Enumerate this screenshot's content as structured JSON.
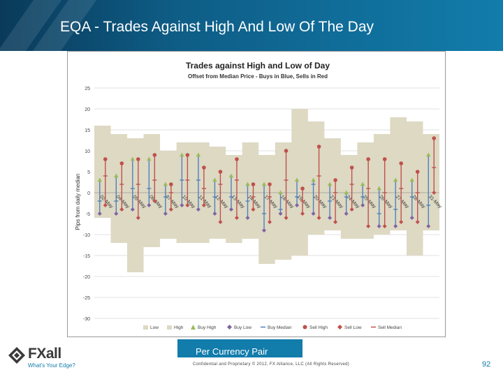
{
  "slide": {
    "title": "EQA - Trades Against High And Low Of The Day",
    "section_label": "Per Currency Pair",
    "footer": "Confidential and Proprietary © 2012, FX Alliance, LLC (All Rights Reserved)",
    "page_number": "92",
    "logo_name": "FXall",
    "logo_tagline": "What's Your Edge?"
  },
  "colors": {
    "banner": "#127cab",
    "band": "#ddd9c3",
    "buy": "#4f81bd",
    "sell": "#c0504d",
    "buy_high": "#9bbb59",
    "buy_low": "#8064a2"
  },
  "chart_data": {
    "type": "line",
    "title": "Trades against High and Low of Day",
    "subtitle": "Offset from Median Price - Buys in Blue, Sells in Red",
    "ylabel": "Pips from daily median",
    "xlabel": "",
    "ylim": [
      -30,
      25
    ],
    "yticks": [
      25,
      20,
      15,
      10,
      5,
      0,
      -5,
      -10,
      -15,
      -20,
      -25,
      -30
    ],
    "grid": true,
    "legend_position": "bottom",
    "categories": [
      "02-May",
      "04-May",
      "05-May",
      "06-May",
      "07-May",
      "10-May",
      "11-May",
      "12-May",
      "13-May",
      "14-May",
      "17-May",
      "18-May",
      "19-May",
      "20-May",
      "21-May",
      "24-May",
      "25-May",
      "26-May",
      "27-May",
      "28-May",
      "31-May"
    ],
    "series": [
      {
        "name": "Low",
        "values": [
          -6,
          -12,
          -19,
          -13,
          -11,
          -12,
          -12,
          -11,
          -12,
          -11,
          -17,
          -16,
          -15,
          -10,
          -9,
          -11,
          -11,
          -10,
          -9,
          -15,
          -9
        ]
      },
      {
        "name": "High",
        "values": [
          16,
          14,
          13,
          14,
          10,
          12,
          12,
          11,
          9,
          12,
          9,
          12,
          20,
          17,
          13,
          9,
          12,
          14,
          18,
          17,
          14
        ]
      },
      {
        "name": "Buy High",
        "values": [
          3,
          4,
          8,
          8,
          2,
          9,
          9,
          3,
          4,
          2,
          2,
          0,
          3,
          3,
          2,
          0,
          2,
          1,
          3,
          3,
          9
        ]
      },
      {
        "name": "Buy Low",
        "values": [
          -5,
          -5,
          -4,
          -3,
          -5,
          -3,
          -4,
          -5,
          -4,
          -6,
          -9,
          -5,
          -3,
          -5,
          -6,
          -5,
          -3,
          -8,
          -8,
          -6,
          -8
        ]
      },
      {
        "name": "Buy Median",
        "values": [
          -2,
          -2,
          1,
          1,
          -1,
          3,
          3,
          -1,
          -1,
          -2,
          -5,
          -4,
          -1,
          2,
          -2,
          -1,
          -1,
          -5,
          -4,
          -1,
          -3
        ]
      },
      {
        "name": "Sell High",
        "values": [
          8,
          7,
          8,
          9,
          2,
          9,
          6,
          5,
          8,
          2,
          2,
          10,
          1,
          11,
          3,
          6,
          8,
          8,
          7,
          5,
          13
        ]
      },
      {
        "name": "Sell Low",
        "values": [
          -3,
          -4,
          -6,
          -2,
          -4,
          -3,
          -3,
          -7,
          -6,
          -4,
          -7,
          -6,
          -5,
          -6,
          -7,
          -4,
          -8,
          -8,
          -7,
          -7,
          0
        ]
      },
      {
        "name": "Sell Median",
        "values": [
          4,
          2,
          2,
          3,
          0,
          3,
          1,
          2,
          3,
          -1,
          -1,
          3,
          -2,
          4,
          0,
          2,
          1,
          0,
          1,
          0,
          6
        ]
      }
    ]
  }
}
